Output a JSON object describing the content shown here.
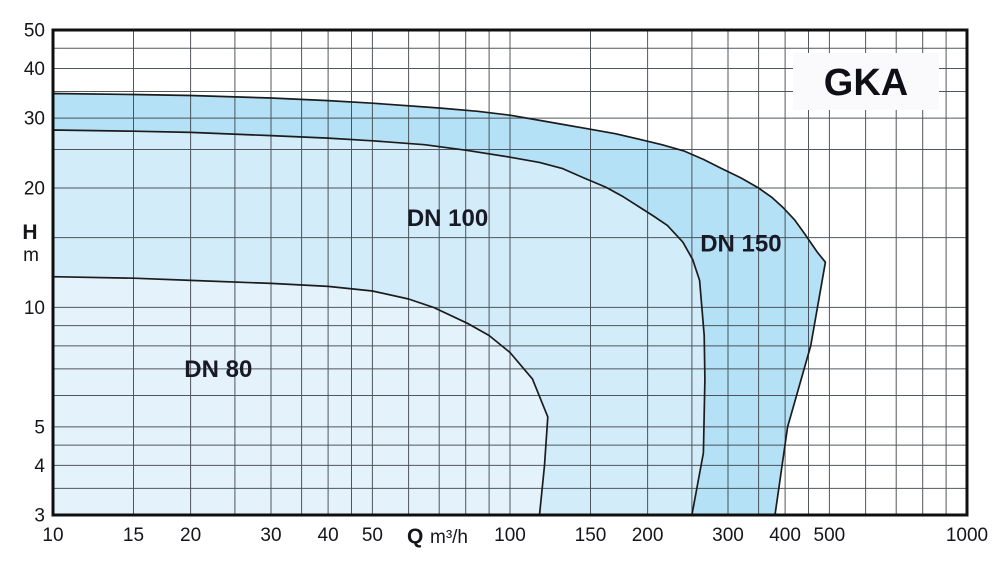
{
  "page": {
    "background": "#ffffff"
  },
  "chart": {
    "title": "GKA",
    "title_box_color": "#fafafc",
    "style": {
      "grid_color": "#3b4046",
      "curve_color": "#1c1c1c",
      "border_color": "#0f0f0f",
      "text_color": "#15151a"
    },
    "axes": {
      "x": {
        "symbol": "Q",
        "unit": "m³/h",
        "scale": "log",
        "min": 10,
        "max": 1000,
        "tick_labels": [
          "10",
          "15",
          "20",
          "30",
          "40",
          "50",
          "100",
          "150",
          "200",
          "300",
          "400",
          "500",
          "1000"
        ],
        "tick_values": [
          10,
          15,
          20,
          30,
          40,
          50,
          100,
          150,
          200,
          300,
          400,
          500,
          1000
        ],
        "gridline_values": [
          10,
          15,
          20,
          25,
          30,
          35,
          40,
          45,
          50,
          60,
          70,
          80,
          90,
          100,
          150,
          200,
          250,
          300,
          350,
          400,
          450,
          500,
          600,
          700,
          800,
          900,
          1000
        ]
      },
      "y": {
        "symbol": "H",
        "unit": "m",
        "scale": "log",
        "min": 3,
        "max": 50,
        "tick_labels": [
          "50",
          "40",
          "30",
          "20",
          "10",
          "5",
          "4",
          "3"
        ],
        "tick_values": [
          50,
          40,
          30,
          20,
          10,
          5,
          4,
          3
        ],
        "gridline_values": [
          3,
          3.5,
          4,
          4.5,
          5,
          6,
          7,
          8,
          9,
          10,
          15,
          20,
          25,
          30,
          35,
          40,
          45,
          50
        ]
      }
    },
    "chart_data": {
      "type": "area",
      "title": "GKA",
      "xlabel": "Q m³/h",
      "ylabel": "H m",
      "x_range": [
        10,
        1000
      ],
      "y_range": [
        3,
        50
      ],
      "x_scale": "log",
      "y_scale": "log",
      "grid": true,
      "description": "Pump family coverage envelopes (flow Q in m3/h vs head H in m)",
      "series": [
        {
          "name": "DN 150",
          "fill": "#b4e1f6",
          "label_q": 320,
          "label_h": 14.5,
          "points_qh": [
            [
              10,
              3
            ],
            [
              10,
              34.6
            ],
            [
              15,
              34.4
            ],
            [
              20,
              34.2
            ],
            [
              30,
              33.7
            ],
            [
              40,
              33.2
            ],
            [
              50,
              32.7
            ],
            [
              70,
              31.8
            ],
            [
              85,
              31.2
            ],
            [
              100,
              30.5
            ],
            [
              120,
              29.4
            ],
            [
              145,
              28.3
            ],
            [
              170,
              27.4
            ],
            [
              190,
              26.6
            ],
            [
              215,
              25.7
            ],
            [
              240,
              24.8
            ],
            [
              265,
              23.6
            ],
            [
              290,
              22.4
            ],
            [
              320,
              21.2
            ],
            [
              350,
              20
            ],
            [
              375,
              18.9
            ],
            [
              395,
              17.9
            ],
            [
              420,
              16.6
            ],
            [
              440,
              15.4
            ],
            [
              470,
              13.8
            ],
            [
              490,
              13
            ],
            [
              455,
              8
            ],
            [
              405,
              5
            ],
            [
              380,
              3
            ]
          ]
        },
        {
          "name": "DN 100",
          "fill": "#d2ecf9",
          "label_q": 73,
          "label_h": 16.8,
          "points_qh": [
            [
              10,
              3
            ],
            [
              10,
              28
            ],
            [
              15,
              27.8
            ],
            [
              20,
              27.6
            ],
            [
              30,
              27.1
            ],
            [
              40,
              26.7
            ],
            [
              50,
              26.3
            ],
            [
              65,
              25.7
            ],
            [
              80,
              24.9
            ],
            [
              100,
              23.9
            ],
            [
              116,
              23.2
            ],
            [
              130,
              22.4
            ],
            [
              145,
              21.2
            ],
            [
              162,
              20.1
            ],
            [
              177,
              19
            ],
            [
              192,
              17.9
            ],
            [
              206,
              17
            ],
            [
              221,
              16.1
            ],
            [
              239,
              14.6
            ],
            [
              251,
              13.2
            ],
            [
              260,
              11.7
            ],
            [
              266,
              8.5
            ],
            [
              267,
              6.6
            ],
            [
              265,
              4.3
            ],
            [
              250,
              3
            ]
          ]
        },
        {
          "name": "DN 80",
          "fill": "#e3f2fb",
          "label_q": 23,
          "label_h": 7,
          "points_qh": [
            [
              10,
              3
            ],
            [
              10,
              11.95
            ],
            [
              15,
              11.85
            ],
            [
              20,
              11.7
            ],
            [
              30,
              11.5
            ],
            [
              40,
              11.3
            ],
            [
              50,
              11
            ],
            [
              60,
              10.5
            ],
            [
              68,
              10
            ],
            [
              81,
              9.1
            ],
            [
              90,
              8.5
            ],
            [
              100,
              7.7
            ],
            [
              112,
              6.6
            ],
            [
              121,
              5.3
            ],
            [
              119,
              4
            ],
            [
              116,
              3
            ]
          ]
        }
      ]
    }
  }
}
